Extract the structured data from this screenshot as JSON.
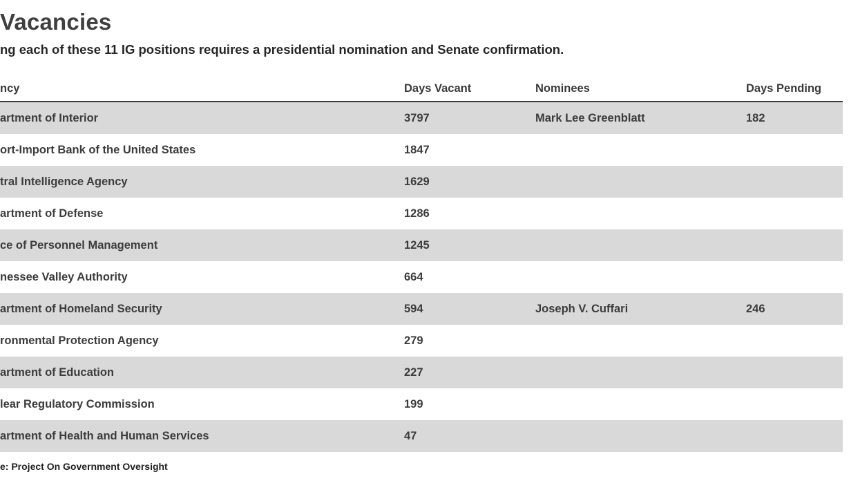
{
  "header": {
    "title": "Vacancies",
    "subtitle": "ng each of these 11 IG positions requires a presidential nomination and Senate confirmation."
  },
  "table": {
    "columns": {
      "agency": "ncy",
      "days_vacant": "Days Vacant",
      "nominees": "Nominees",
      "days_pending": "Days Pending"
    },
    "rows": [
      {
        "agency": "artment of Interior",
        "days_vacant": "3797",
        "nominee": "Mark Lee Greenblatt",
        "days_pending": "182"
      },
      {
        "agency": "ort-Import Bank of the United States",
        "days_vacant": "1847",
        "nominee": "",
        "days_pending": ""
      },
      {
        "agency": "tral Intelligence Agency",
        "days_vacant": "1629",
        "nominee": "",
        "days_pending": ""
      },
      {
        "agency": "artment of Defense",
        "days_vacant": "1286",
        "nominee": "",
        "days_pending": ""
      },
      {
        "agency": "ce of Personnel Management",
        "days_vacant": "1245",
        "nominee": "",
        "days_pending": ""
      },
      {
        "agency": "nessee Valley Authority",
        "days_vacant": "664",
        "nominee": "",
        "days_pending": ""
      },
      {
        "agency": "artment of Homeland Security",
        "days_vacant": "594",
        "nominee": "Joseph V. Cuffari",
        "days_pending": "246"
      },
      {
        "agency": "ronmental Protection Agency",
        "days_vacant": "279",
        "nominee": "",
        "days_pending": ""
      },
      {
        "agency": "artment of Education",
        "days_vacant": "227",
        "nominee": "",
        "days_pending": ""
      },
      {
        "agency": "lear Regulatory Commission",
        "days_vacant": "199",
        "nominee": "",
        "days_pending": ""
      },
      {
        "agency": "artment of Health and Human Services",
        "days_vacant": "47",
        "nominee": "",
        "days_pending": ""
      }
    ]
  },
  "footer": {
    "source": "e: Project On Government Oversight"
  },
  "colors": {
    "row_stripe": "#d9d9d9",
    "table_text": "#3c3c3c",
    "header_border": "#3c3c3c",
    "background": "#ffffff"
  },
  "chart_data": {
    "type": "table",
    "title": "Vacancies",
    "subtitle": "ng each of these 11 IG positions requires a presidential nomination and Senate confirmation.",
    "columns": [
      "ncy",
      "Days Vacant",
      "Nominees",
      "Days Pending"
    ],
    "rows": [
      [
        "artment of Interior",
        3797,
        "Mark Lee Greenblatt",
        182
      ],
      [
        "ort-Import Bank of the United States",
        1847,
        "",
        null
      ],
      [
        "tral Intelligence Agency",
        1629,
        "",
        null
      ],
      [
        "artment of Defense",
        1286,
        "",
        null
      ],
      [
        "ce of Personnel Management",
        1245,
        "",
        null
      ],
      [
        "nessee Valley Authority",
        664,
        "",
        null
      ],
      [
        "artment of Homeland Security",
        594,
        "Joseph V. Cuffari",
        246
      ],
      [
        "ronmental Protection Agency",
        279,
        "",
        null
      ],
      [
        "artment of Education",
        227,
        "",
        null
      ],
      [
        "lear Regulatory Commission",
        199,
        "",
        null
      ],
      [
        "artment of Health and Human Services",
        47,
        "",
        null
      ]
    ],
    "layout": {
      "striped_rows": "odd rows shaded gray starting with first data row",
      "source": "e: Project On Government Oversight"
    }
  }
}
